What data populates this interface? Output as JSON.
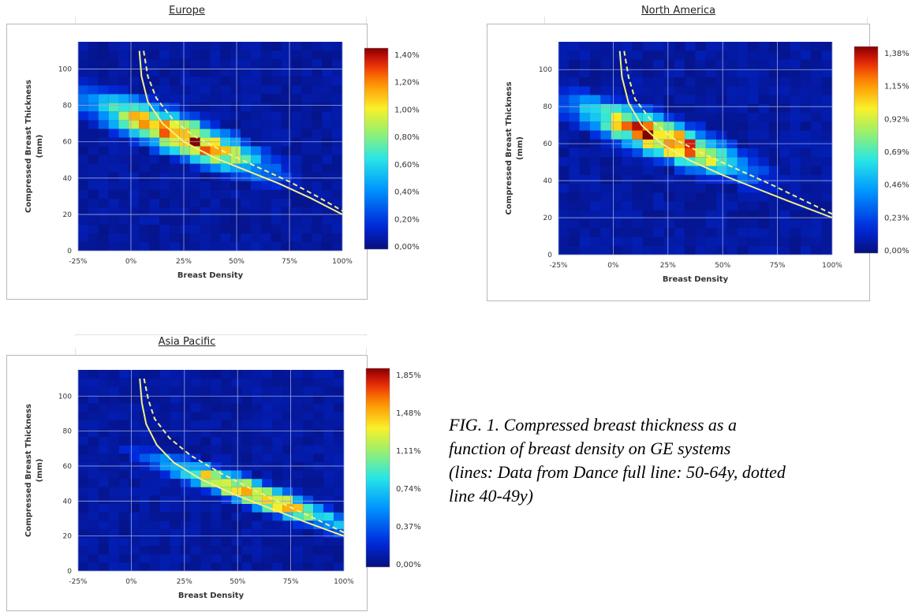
{
  "chart_data": [
    {
      "type": "heatmap",
      "title": "Europe",
      "xlabel": "Breast Density",
      "ylabel_line1": "Compressed Breast Thickness",
      "ylabel_line2": "(mm)",
      "x_ticks": [
        "-25%",
        "0%",
        "25%",
        "50%",
        "75%",
        "100%"
      ],
      "y_ticks": [
        "0",
        "20",
        "40",
        "60",
        "80",
        "100"
      ],
      "xlim": [
        -25,
        100
      ],
      "ylim": [
        0,
        115
      ],
      "grid": true,
      "colorbar_ticks": [
        "1,40%",
        "1,20%",
        "1,00%",
        "0,80%",
        "0,60%",
        "0,40%",
        "0,20%",
        "0,00%"
      ],
      "colorbar_range": [
        0,
        1.5
      ],
      "hotspot": {
        "x": 22,
        "y": 64,
        "sx": 20,
        "sy": 12,
        "rot": 0.28,
        "peak": 1.45
      },
      "density_center_curve": [
        [
          5,
          70
        ],
        [
          30,
          60
        ],
        [
          55,
          48
        ],
        [
          80,
          40
        ],
        [
          95,
          35
        ]
      ],
      "lines": [
        {
          "style": "solid",
          "points": [
            [
              4,
              110
            ],
            [
              5,
              96
            ],
            [
              8,
              82
            ],
            [
              15,
              70
            ],
            [
              25,
              60
            ],
            [
              40,
              51
            ],
            [
              55,
              44
            ],
            [
              70,
              37
            ],
            [
              85,
              29
            ],
            [
              100,
              20
            ]
          ]
        },
        {
          "style": "dashed",
          "points": [
            [
              6,
              110
            ],
            [
              8,
              96
            ],
            [
              12,
              84
            ],
            [
              20,
              72
            ],
            [
              30,
              63
            ],
            [
              45,
              54
            ],
            [
              60,
              46
            ],
            [
              75,
              38
            ],
            [
              88,
              30
            ],
            [
              100,
              22
            ]
          ]
        }
      ]
    },
    {
      "type": "heatmap",
      "title": "North America",
      "xlabel": "Breast Density",
      "ylabel_line1": "Compressed Breast Thickness",
      "ylabel_line2": "(mm)",
      "x_ticks": [
        "-25%",
        "0%",
        "25%",
        "50%",
        "75%",
        "100%"
      ],
      "y_ticks": [
        "0",
        "20",
        "40",
        "60",
        "80",
        "100"
      ],
      "xlim": [
        -25,
        100
      ],
      "ylim": [
        0,
        115
      ],
      "grid": true,
      "colorbar_ticks": [
        "1,38%",
        "1,15%",
        "0,92%",
        "0,69%",
        "0,46%",
        "0,23%",
        "0,00%"
      ],
      "colorbar_range": [
        0,
        1.5
      ],
      "hotspot": {
        "x": 22,
        "y": 63,
        "sx": 19,
        "sy": 12,
        "rot": 0.25,
        "peak": 1.38
      },
      "lines": [
        {
          "style": "solid",
          "points": [
            [
              3,
              110
            ],
            [
              4,
              96
            ],
            [
              7,
              82
            ],
            [
              13,
              70
            ],
            [
              22,
              60
            ],
            [
              35,
              51
            ],
            [
              50,
              43
            ],
            [
              65,
              36
            ],
            [
              80,
              29
            ],
            [
              100,
              20
            ]
          ]
        },
        {
          "style": "dashed",
          "points": [
            [
              5,
              110
            ],
            [
              7,
              96
            ],
            [
              10,
              84
            ],
            [
              17,
              73
            ],
            [
              27,
              63
            ],
            [
              42,
              54
            ],
            [
              57,
              46
            ],
            [
              72,
              38
            ],
            [
              86,
              30
            ],
            [
              100,
              22
            ]
          ]
        }
      ]
    },
    {
      "type": "heatmap",
      "title": "Asia Pacific",
      "xlabel": "Breast Density",
      "ylabel_line1": "Compressed Breast Thickness",
      "ylabel_line2": "(mm)",
      "x_ticks": [
        "-25%",
        "0%",
        "25%",
        "50%",
        "75%",
        "100%"
      ],
      "y_ticks": [
        "0",
        "20",
        "40",
        "60",
        "80",
        "100"
      ],
      "xlim": [
        -25,
        100
      ],
      "ylim": [
        0,
        115
      ],
      "grid": true,
      "colorbar_ticks": [
        "1,85%",
        "1,48%",
        "1,11%",
        "0,74%",
        "0,37%",
        "0,00%"
      ],
      "colorbar_range": [
        0,
        2.1
      ],
      "hotspot": {
        "x": 58,
        "y": 44,
        "sx": 22,
        "sy": 8,
        "rot": 0.22,
        "peak": 1.85
      },
      "lines": [
        {
          "style": "solid",
          "points": [
            [
              4,
              110
            ],
            [
              5,
              96
            ],
            [
              7,
              84
            ],
            [
              12,
              72
            ],
            [
              20,
              62
            ],
            [
              32,
              53
            ],
            [
              48,
              44
            ],
            [
              65,
              36
            ],
            [
              82,
              28
            ],
            [
              100,
              20
            ]
          ]
        },
        {
          "style": "dashed",
          "points": [
            [
              6,
              110
            ],
            [
              8,
              98
            ],
            [
              11,
              87
            ],
            [
              18,
              76
            ],
            [
              28,
              66
            ],
            [
              42,
              56
            ],
            [
              58,
              46
            ],
            [
              74,
              37
            ],
            [
              88,
              29
            ],
            [
              100,
              22
            ]
          ]
        }
      ]
    }
  ],
  "caption": {
    "line1": "FIG. 1.    Compressed breast thickness as a",
    "line2": "function of breast density on GE systems",
    "line3": "(lines: Data from Dance full line: 50-64y, dotted",
    "line4": "line 40-49y)"
  },
  "colors": {
    "background_low": "#07107c",
    "line": "#f4f08a",
    "grid": "#9aa6d8"
  }
}
